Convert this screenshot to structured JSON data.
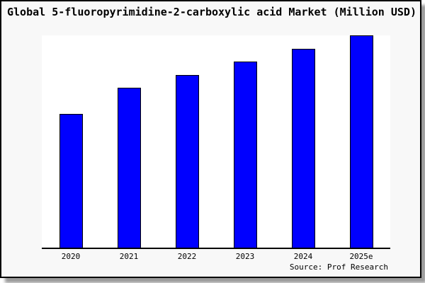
{
  "chart_data": {
    "type": "bar",
    "title": "Global 5-fluoropyrimidine-2-carboxylic acid Market (Million USD)",
    "categories": [
      "2020",
      "2021",
      "2022",
      "2023",
      "2024",
      "2025e"
    ],
    "values": [
      63.0,
      75.2,
      81.5,
      87.7,
      93.7,
      100.0
    ],
    "xlabel": "",
    "ylabel": "",
    "ylim": [
      0,
      100
    ],
    "grid": false,
    "legend": false,
    "bar_color": "#0000ff",
    "bar_border_color": "#000000",
    "plot_background": "#ffffff",
    "chart_background": "#f8f8f8",
    "source": "Source: Prof Research"
  }
}
